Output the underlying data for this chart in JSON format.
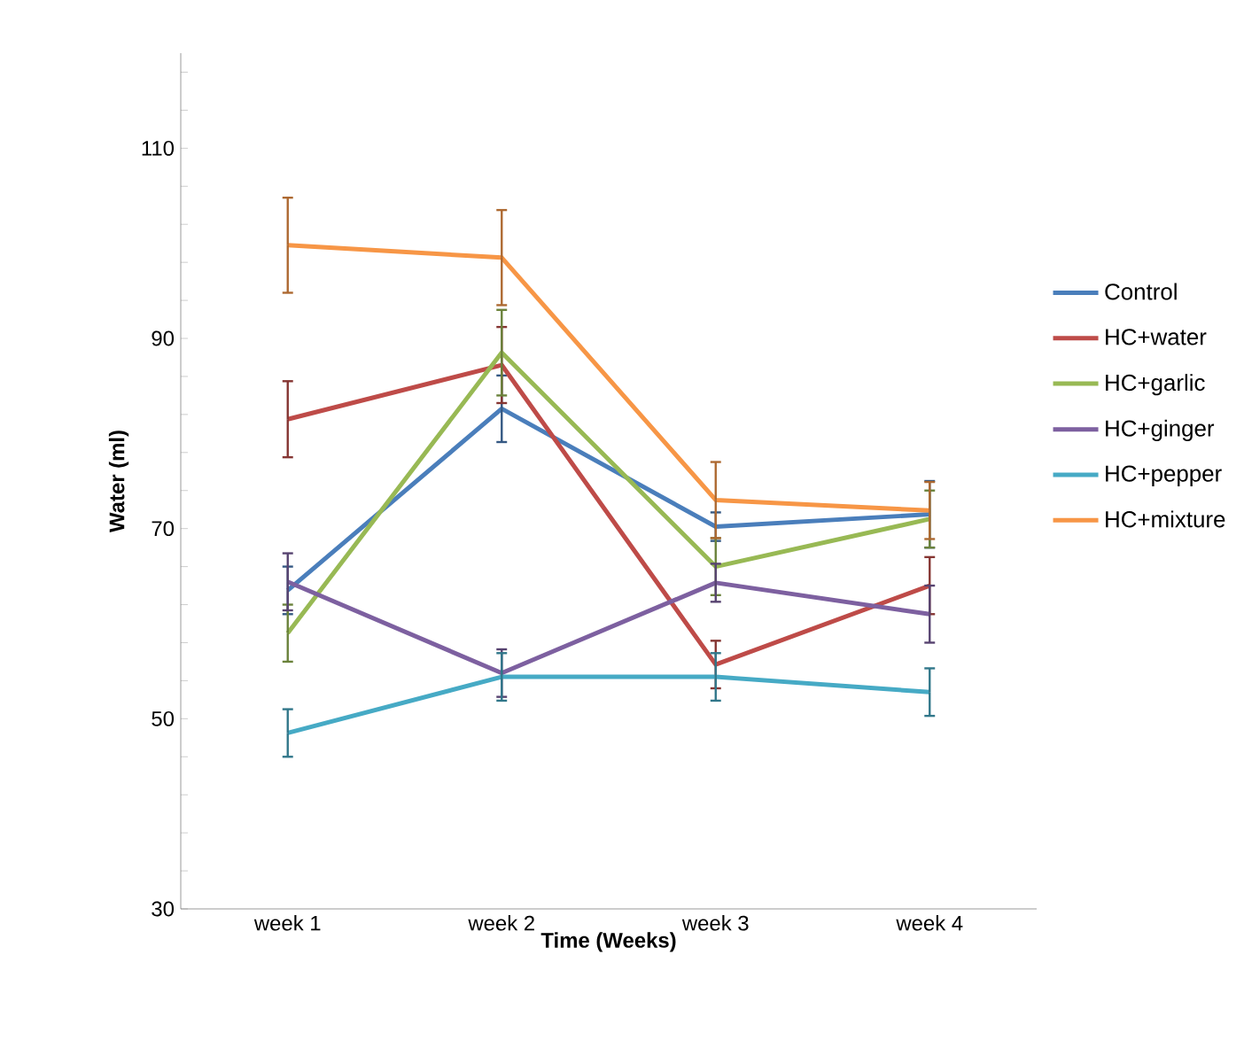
{
  "chart_data": {
    "type": "line",
    "xlabel": "Time (Weeks)",
    "ylabel": "Water (ml)",
    "categories": [
      "week 1",
      "week 2",
      "week 3",
      "week 4"
    ],
    "ylim": [
      30,
      120
    ],
    "yticks": [
      30,
      {
        "value": 34,
        "label": null
      },
      {
        "value": 38,
        "label": null
      },
      {
        "value": 42,
        "label": null
      },
      {
        "value": 46,
        "label": null
      },
      50,
      {
        "value": 54,
        "label": null
      },
      {
        "value": 58,
        "label": null
      },
      {
        "value": 62,
        "label": null
      },
      {
        "value": 66,
        "label": null
      },
      70,
      {
        "value": 74,
        "label": null
      },
      {
        "value": 78,
        "label": null
      },
      {
        "value": 82,
        "label": null
      },
      {
        "value": 86,
        "label": null
      },
      90,
      {
        "value": 94,
        "label": null
      },
      {
        "value": 98,
        "label": null
      },
      {
        "value": 102,
        "label": null
      },
      {
        "value": 106,
        "label": null
      },
      110,
      {
        "value": 114,
        "label": null
      },
      {
        "value": 118,
        "label": null
      }
    ],
    "grid": false,
    "legend": "right",
    "marker": "none",
    "line_style": "solid",
    "series": [
      {
        "name": "Control",
        "color": "#4a7ebb",
        "values": [
          63.5,
          82.6,
          70.2,
          71.5
        ],
        "errors": [
          2.5,
          3.5,
          1.5,
          3.5
        ]
      },
      {
        "name": "HC+water",
        "color": "#be4b48",
        "values": [
          81.5,
          87.2,
          55.7,
          64
        ],
        "errors": [
          4,
          4,
          2.5,
          3
        ]
      },
      {
        "name": "HC+garlic",
        "color": "#98b954",
        "values": [
          59,
          88.5,
          66,
          71
        ],
        "errors": [
          3,
          4.5,
          3,
          3
        ]
      },
      {
        "name": "HC+ginger",
        "color": "#7d60a0",
        "values": [
          64.4,
          54.8,
          64.3,
          61
        ],
        "errors": [
          3,
          2.5,
          2,
          3
        ]
      },
      {
        "name": "HC+pepper",
        "color": "#46aac5",
        "values": [
          48.5,
          54.4,
          54.4,
          52.8
        ],
        "errors": [
          2.5,
          2.5,
          2.5,
          2.5
        ]
      },
      {
        "name": "HC+mixture",
        "color": "#f79646",
        "values": [
          99.8,
          98.5,
          73,
          71.9
        ],
        "errors": [
          5,
          5,
          4,
          3
        ]
      }
    ]
  }
}
